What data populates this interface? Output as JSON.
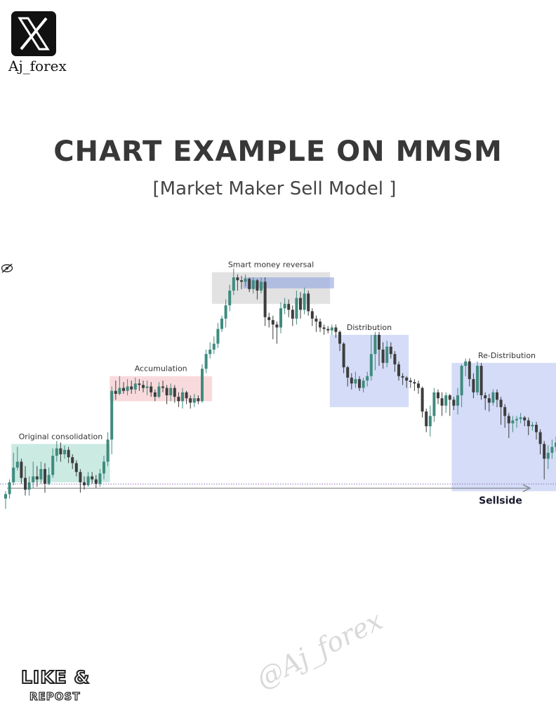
{
  "brand": {
    "logo_icon": "x-logo-icon",
    "handle": "Aj_forex"
  },
  "title": "CHART EXAMPLE ON MMSM",
  "subtitle": "[Market Maker Sell Model ]",
  "footer": {
    "line1": "LIKE &",
    "line2": "REPOST",
    "watermark": "@Aj_forex"
  },
  "chart_icon": "eye-slash-icon",
  "chart_data": {
    "type": "candlestick",
    "xlabel": "",
    "ylabel": "",
    "colors": {
      "up": "#3f8b7f",
      "down": "#3d3d3d",
      "sellside_line": "#9b7fc4"
    },
    "zones": [
      {
        "label": "Original consolidation",
        "from_index": 2,
        "to_index": 26,
        "low": 22,
        "high": 74,
        "color": "#a8dccf"
      },
      {
        "label": "Accumulation",
        "from_index": 27,
        "to_index": 52,
        "low": 132,
        "high": 166,
        "color": "#f5c2c4"
      },
      {
        "label": "Smart money reversal",
        "from_index": 53,
        "to_index": 82,
        "low": 264,
        "high": 307,
        "color": "#cfcfcf"
      },
      {
        "label": "",
        "from_index": 61,
        "to_index": 83,
        "low": 285,
        "high": 300,
        "color": "#8fa3df"
      },
      {
        "label": "Distribution",
        "from_index": 83,
        "to_index": 102,
        "low": 124,
        "high": 222,
        "color": "#b7c4f1"
      },
      {
        "label": "Re-Distribution",
        "from_index": 114,
        "to_index": 141,
        "low": 10,
        "high": 184,
        "color": "#b7c4f1"
      }
    ],
    "sellside": {
      "label": "Sellside",
      "level": 14
    },
    "candles": [
      [
        0,
        6,
        10,
        -14
      ],
      [
        6,
        22,
        26,
        0
      ],
      [
        22,
        42,
        62,
        18
      ],
      [
        42,
        50,
        70,
        38
      ],
      [
        50,
        28,
        54,
        20
      ],
      [
        28,
        12,
        44,
        4
      ],
      [
        12,
        22,
        30,
        4
      ],
      [
        22,
        30,
        50,
        14
      ],
      [
        30,
        26,
        44,
        16
      ],
      [
        26,
        40,
        50,
        20
      ],
      [
        40,
        20,
        48,
        8
      ],
      [
        20,
        32,
        42,
        18
      ],
      [
        32,
        58,
        68,
        28
      ],
      [
        58,
        68,
        78,
        50
      ],
      [
        68,
        60,
        76,
        50
      ],
      [
        60,
        66,
        72,
        54
      ],
      [
        66,
        56,
        70,
        48
      ],
      [
        56,
        48,
        60,
        40
      ],
      [
        48,
        36,
        52,
        30
      ],
      [
        36,
        22,
        40,
        8
      ],
      [
        22,
        18,
        30,
        12
      ],
      [
        18,
        30,
        36,
        16
      ],
      [
        30,
        26,
        36,
        20
      ],
      [
        26,
        20,
        32,
        14
      ],
      [
        20,
        34,
        40,
        16
      ],
      [
        34,
        50,
        58,
        26
      ],
      [
        50,
        80,
        90,
        44
      ],
      [
        80,
        146,
        152,
        60
      ],
      [
        146,
        142,
        160,
        134
      ],
      [
        142,
        150,
        166,
        140
      ],
      [
        150,
        146,
        158,
        142
      ],
      [
        146,
        152,
        162,
        140
      ],
      [
        152,
        148,
        160,
        142
      ],
      [
        148,
        156,
        164,
        142
      ],
      [
        156,
        154,
        162,
        146
      ],
      [
        154,
        150,
        160,
        144
      ],
      [
        150,
        152,
        160,
        140
      ],
      [
        152,
        144,
        158,
        138
      ],
      [
        144,
        138,
        148,
        132
      ],
      [
        138,
        152,
        158,
        136
      ],
      [
        152,
        150,
        160,
        144
      ],
      [
        150,
        140,
        154,
        128
      ],
      [
        140,
        150,
        156,
        132
      ],
      [
        150,
        138,
        154,
        130
      ],
      [
        138,
        132,
        144,
        124
      ],
      [
        132,
        144,
        150,
        122
      ],
      [
        144,
        136,
        146,
        128
      ],
      [
        136,
        130,
        140,
        122
      ],
      [
        130,
        136,
        142,
        124
      ],
      [
        136,
        132,
        140,
        128
      ],
      [
        132,
        176,
        182,
        130
      ],
      [
        176,
        196,
        202,
        170
      ],
      [
        196,
        202,
        212,
        190
      ],
      [
        202,
        210,
        220,
        196
      ],
      [
        210,
        230,
        238,
        204
      ],
      [
        230,
        244,
        248,
        226
      ],
      [
        244,
        262,
        270,
        232
      ],
      [
        262,
        282,
        290,
        254
      ],
      [
        282,
        300,
        312,
        276
      ],
      [
        300,
        296,
        304,
        282
      ],
      [
        296,
        294,
        302,
        284
      ],
      [
        294,
        298,
        304,
        288
      ],
      [
        298,
        284,
        300,
        280
      ],
      [
        284,
        296,
        300,
        278
      ],
      [
        296,
        282,
        298,
        270
      ],
      [
        282,
        294,
        300,
        278
      ],
      [
        294,
        246,
        300,
        234
      ],
      [
        246,
        242,
        252,
        232
      ],
      [
        242,
        236,
        248,
        216
      ],
      [
        236,
        232,
        240,
        210
      ],
      [
        232,
        258,
        266,
        224
      ],
      [
        258,
        264,
        272,
        250
      ],
      [
        264,
        256,
        270,
        246
      ],
      [
        256,
        244,
        262,
        234
      ],
      [
        244,
        272,
        282,
        236
      ],
      [
        272,
        256,
        280,
        244
      ],
      [
        256,
        278,
        286,
        250
      ],
      [
        278,
        254,
        282,
        248
      ],
      [
        254,
        244,
        258,
        234
      ],
      [
        244,
        240,
        248,
        226
      ],
      [
        240,
        232,
        244,
        226
      ],
      [
        232,
        230,
        236,
        222
      ],
      [
        230,
        228,
        234,
        224
      ],
      [
        228,
        232,
        236,
        222
      ],
      [
        232,
        226,
        236,
        218
      ],
      [
        226,
        210,
        228,
        200
      ],
      [
        210,
        178,
        212,
        170
      ],
      [
        178,
        164,
        180,
        152
      ],
      [
        164,
        156,
        170,
        148
      ],
      [
        156,
        162,
        172,
        150
      ],
      [
        162,
        150,
        166,
        146
      ],
      [
        150,
        160,
        164,
        144
      ],
      [
        160,
        166,
        172,
        152
      ],
      [
        166,
        196,
        222,
        160
      ],
      [
        196,
        222,
        226,
        174
      ],
      [
        222,
        202,
        226,
        180
      ],
      [
        202,
        184,
        212,
        176
      ],
      [
        184,
        206,
        214,
        178
      ],
      [
        206,
        196,
        212,
        190
      ],
      [
        196,
        182,
        200,
        172
      ],
      [
        182,
        166,
        186,
        160
      ],
      [
        166,
        164,
        170,
        154
      ],
      [
        164,
        160,
        166,
        150
      ],
      [
        160,
        158,
        164,
        150
      ],
      [
        158,
        156,
        162,
        146
      ],
      [
        156,
        150,
        160,
        142
      ],
      [
        150,
        118,
        152,
        110
      ],
      [
        118,
        98,
        122,
        90
      ],
      [
        98,
        112,
        126,
        84
      ],
      [
        112,
        144,
        150,
        104
      ],
      [
        144,
        136,
        148,
        128
      ],
      [
        136,
        126,
        144,
        112
      ],
      [
        126,
        140,
        144,
        116
      ],
      [
        140,
        134,
        142,
        112
      ],
      [
        134,
        126,
        138,
        120
      ],
      [
        126,
        140,
        150,
        114
      ],
      [
        140,
        180,
        182,
        124
      ],
      [
        180,
        186,
        190,
        166
      ],
      [
        186,
        162,
        190,
        152
      ],
      [
        162,
        144,
        170,
        136
      ],
      [
        144,
        180,
        186,
        140
      ],
      [
        180,
        140,
        184,
        134
      ],
      [
        140,
        136,
        144,
        120
      ],
      [
        136,
        130,
        142,
        118
      ],
      [
        130,
        144,
        148,
        126
      ],
      [
        144,
        134,
        148,
        124
      ],
      [
        134,
        124,
        138,
        100
      ],
      [
        124,
        112,
        128,
        96
      ],
      [
        112,
        102,
        116,
        82
      ],
      [
        102,
        106,
        112,
        90
      ],
      [
        106,
        108,
        112,
        96
      ],
      [
        108,
        110,
        116,
        102
      ],
      [
        110,
        106,
        112,
        98
      ],
      [
        106,
        98,
        110,
        86
      ],
      [
        98,
        100,
        104,
        92
      ],
      [
        100,
        90,
        104,
        80
      ],
      [
        90,
        74,
        94,
        60
      ],
      [
        74,
        54,
        78,
        26
      ],
      [
        54,
        62,
        72,
        40
      ],
      [
        62,
        70,
        80,
        54
      ],
      [
        70,
        76,
        84,
        64
      ],
      [
        76,
        78,
        86,
        60
      ],
      [
        78,
        164,
        172,
        60
      ],
      [
        164,
        172,
        206,
        120
      ]
    ]
  }
}
